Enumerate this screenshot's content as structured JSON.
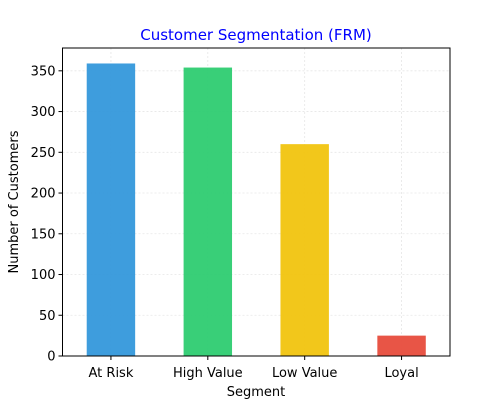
{
  "chart_data": {
    "type": "bar",
    "title": "Customer Segmentation (FRM)",
    "xlabel": "Segment",
    "ylabel": "Number of Customers",
    "categories": [
      "At Risk",
      "High Value",
      "Low Value",
      "Loyal"
    ],
    "values": [
      359,
      354,
      260,
      25
    ],
    "bar_colors": [
      "#3498db",
      "#2ecc71",
      "#f1c40f",
      "#e74c3c"
    ],
    "ylim": [
      0,
      378
    ],
    "yticks": [
      0,
      50,
      100,
      150,
      200,
      250,
      300,
      350
    ],
    "grid": true,
    "title_color": "#0000ff"
  }
}
